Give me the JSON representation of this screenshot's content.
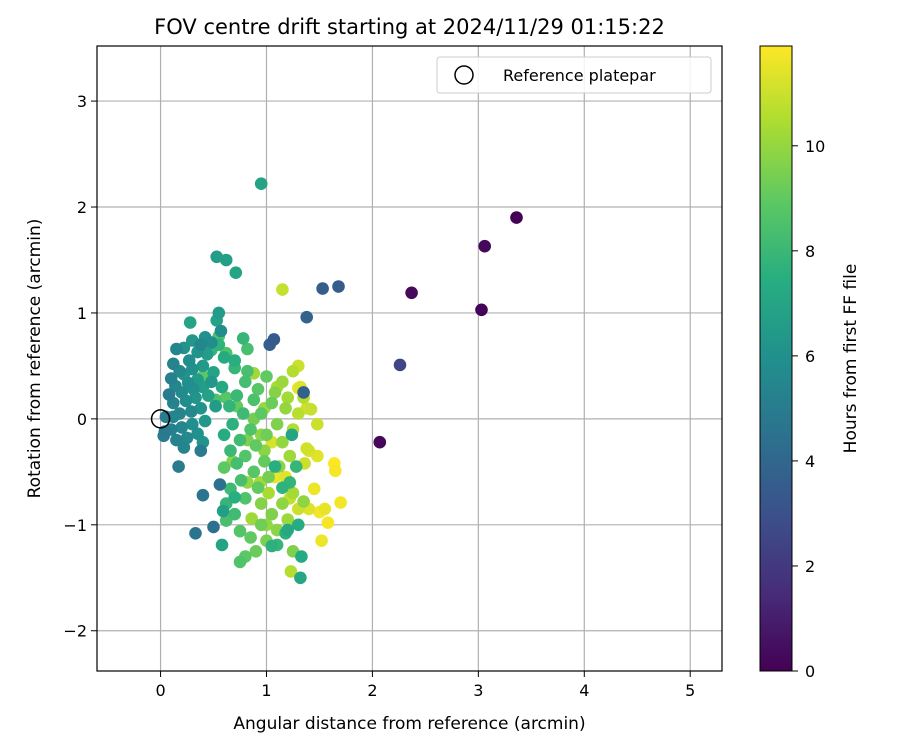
{
  "chart_data": {
    "type": "scatter",
    "title": "FOV centre drift starting at 2024/11/29 01:15:22",
    "xlabel": "Angular distance from reference (arcmin)",
    "ylabel": "Rotation from reference (arcmin)",
    "xlim": [
      -0.6,
      5.3
    ],
    "ylim": [
      -2.38,
      3.52
    ],
    "xticks": [
      0,
      1,
      2,
      3,
      4,
      5
    ],
    "yticks": [
      -2,
      -1,
      0,
      1,
      2,
      3
    ],
    "grid": true,
    "colormap": "viridis",
    "colorbar": {
      "label": "Hours from first FF file",
      "range": [
        0,
        11.9
      ],
      "ticks": [
        0,
        2,
        4,
        6,
        8,
        10
      ]
    },
    "legend": {
      "placement": "top-right",
      "entries": [
        {
          "label": "Reference platepar",
          "marker": "open-circle",
          "color": "#000000"
        }
      ]
    },
    "reference_point": {
      "x": 0,
      "y": 0
    },
    "series": [
      {
        "marker": "filled-circle",
        "points": [
          [
            3.36,
            1.9,
            0.0
          ],
          [
            3.06,
            1.63,
            0.2
          ],
          [
            2.37,
            1.19,
            0.3
          ],
          [
            3.03,
            1.03,
            0.1
          ],
          [
            2.07,
            -0.22,
            0.2
          ],
          [
            2.26,
            0.51,
            2.5
          ],
          [
            1.53,
            1.23,
            3.6
          ],
          [
            1.68,
            1.25,
            3.5
          ],
          [
            1.38,
            0.96,
            3.8
          ],
          [
            1.07,
            0.75,
            3.4
          ],
          [
            1.03,
            0.7,
            3.6
          ],
          [
            1.35,
            0.25,
            3.7
          ],
          [
            0.95,
            2.22,
            6.9
          ],
          [
            0.53,
            1.53,
            6.6
          ],
          [
            0.62,
            1.5,
            6.7
          ],
          [
            0.71,
            1.38,
            7.0
          ],
          [
            0.55,
            1.0,
            6.5
          ],
          [
            0.53,
            0.93,
            6.8
          ],
          [
            0.28,
            0.91,
            7.0
          ],
          [
            0.57,
            0.83,
            5.8
          ],
          [
            0.42,
            0.77,
            6.0
          ],
          [
            0.3,
            0.74,
            6.3
          ],
          [
            0.48,
            0.72,
            5.8
          ],
          [
            0.38,
            0.7,
            5.5
          ],
          [
            0.22,
            0.67,
            6.1
          ],
          [
            0.15,
            0.66,
            5.4
          ],
          [
            0.35,
            0.63,
            6.2
          ],
          [
            0.44,
            0.61,
            6.6
          ],
          [
            0.27,
            0.55,
            5.9
          ],
          [
            0.12,
            0.52,
            5.3
          ],
          [
            0.4,
            0.5,
            6.4
          ],
          [
            0.3,
            0.47,
            6.0
          ],
          [
            0.18,
            0.45,
            5.6
          ],
          [
            0.22,
            0.42,
            6.2
          ],
          [
            0.1,
            0.38,
            5.2
          ],
          [
            0.35,
            0.37,
            6.5
          ],
          [
            0.48,
            0.35,
            6.3
          ],
          [
            0.26,
            0.34,
            5.9
          ],
          [
            0.14,
            0.31,
            5.5
          ],
          [
            0.4,
            0.3,
            6.7
          ],
          [
            0.31,
            0.28,
            6.0
          ],
          [
            0.2,
            0.25,
            5.7
          ],
          [
            0.08,
            0.23,
            5.0
          ],
          [
            0.45,
            0.22,
            6.8
          ],
          [
            0.33,
            0.2,
            6.2
          ],
          [
            0.24,
            0.17,
            5.8
          ],
          [
            0.12,
            0.15,
            5.3
          ],
          [
            0.52,
            0.12,
            6.5
          ],
          [
            0.38,
            0.1,
            6.1
          ],
          [
            0.29,
            0.07,
            5.6
          ],
          [
            0.18,
            0.05,
            5.4
          ],
          [
            0.05,
            0.02,
            5.0
          ],
          [
            0.42,
            -0.02,
            6.3
          ],
          [
            0.3,
            -0.05,
            5.9
          ],
          [
            0.2,
            -0.08,
            5.5
          ],
          [
            0.1,
            -0.1,
            5.2
          ],
          [
            0.04,
            -0.12,
            4.9
          ],
          [
            0.35,
            -0.14,
            6.0
          ],
          [
            0.25,
            -0.18,
            5.6
          ],
          [
            0.15,
            -0.2,
            5.3
          ],
          [
            0.4,
            -0.22,
            6.2
          ],
          [
            0.22,
            -0.27,
            5.4
          ],
          [
            0.38,
            -0.3,
            5.0
          ],
          [
            0.17,
            -0.45,
            5.0
          ],
          [
            0.4,
            -0.72,
            4.6
          ],
          [
            0.33,
            -1.08,
            4.6
          ],
          [
            0.5,
            -1.02,
            4.4
          ],
          [
            0.56,
            -0.62,
            4.5
          ],
          [
            0.59,
            -0.87,
            6.7
          ],
          [
            0.58,
            -1.19,
            6.9
          ],
          [
            0.03,
            -0.16,
            5.0
          ],
          [
            0.12,
            0.02,
            5.5
          ],
          [
            0.5,
            0.44,
            6.9
          ],
          [
            0.6,
            0.58,
            7.3
          ],
          [
            0.7,
            0.55,
            7.5
          ],
          [
            0.58,
            0.3,
            7.2
          ],
          [
            0.65,
            0.12,
            7.8
          ],
          [
            0.72,
            0.22,
            8.0
          ],
          [
            0.8,
            0.35,
            8.3
          ],
          [
            0.88,
            0.18,
            8.5
          ],
          [
            0.78,
            0.05,
            8.1
          ],
          [
            0.68,
            -0.05,
            7.6
          ],
          [
            0.6,
            -0.15,
            7.4
          ],
          [
            0.75,
            -0.2,
            8.2
          ],
          [
            0.85,
            -0.1,
            8.6
          ],
          [
            0.95,
            0.05,
            8.9
          ],
          [
            1.05,
            0.15,
            9.2
          ],
          [
            0.92,
            0.28,
            8.8
          ],
          [
            1.0,
            0.4,
            9.0
          ],
          [
            0.82,
            0.45,
            8.4
          ],
          [
            0.7,
            0.48,
            7.9
          ],
          [
            0.55,
            0.7,
            7.7
          ],
          [
            0.78,
            0.76,
            7.9
          ],
          [
            0.82,
            0.66,
            8.4
          ],
          [
            0.62,
            0.62,
            8.6
          ],
          [
            0.66,
            -0.3,
            8.0
          ],
          [
            0.72,
            -0.42,
            8.3
          ],
          [
            0.8,
            -0.35,
            8.7
          ],
          [
            0.9,
            -0.25,
            9.0
          ],
          [
            1.0,
            -0.15,
            9.3
          ],
          [
            1.1,
            -0.05,
            9.6
          ],
          [
            1.18,
            0.1,
            10.0
          ],
          [
            1.08,
            0.25,
            9.7
          ],
          [
            0.98,
            -0.4,
            9.1
          ],
          [
            0.88,
            -0.5,
            8.8
          ],
          [
            0.76,
            -0.58,
            8.4
          ],
          [
            0.66,
            -0.66,
            8.1
          ],
          [
            0.62,
            -0.8,
            7.9
          ],
          [
            0.7,
            -0.9,
            8.2
          ],
          [
            0.8,
            -0.75,
            8.6
          ],
          [
            0.92,
            -0.65,
            9.0
          ],
          [
            1.02,
            -0.55,
            9.4
          ],
          [
            1.12,
            -0.45,
            9.8
          ],
          [
            1.22,
            -0.35,
            10.2
          ],
          [
            1.15,
            -0.22,
            10.0
          ],
          [
            1.25,
            -0.1,
            10.5
          ],
          [
            1.3,
            0.05,
            10.7
          ],
          [
            1.2,
            0.2,
            10.3
          ],
          [
            1.15,
            0.35,
            10.1
          ],
          [
            1.25,
            0.45,
            10.6
          ],
          [
            0.62,
            -0.96,
            8.4
          ],
          [
            0.75,
            -1.06,
            8.7
          ],
          [
            0.85,
            -1.12,
            9.0
          ],
          [
            0.95,
            -1.0,
            9.3
          ],
          [
            1.05,
            -0.9,
            9.6
          ],
          [
            1.15,
            -0.8,
            9.9
          ],
          [
            1.25,
            -0.7,
            10.3
          ],
          [
            1.2,
            -0.95,
            10.1
          ],
          [
            1.1,
            -1.05,
            9.8
          ],
          [
            1.0,
            -1.15,
            9.5
          ],
          [
            0.9,
            -1.25,
            9.2
          ],
          [
            0.8,
            -1.3,
            8.9
          ],
          [
            0.75,
            -1.35,
            8.6
          ],
          [
            1.05,
            -1.2,
            7.6
          ],
          [
            1.2,
            -1.05,
            7.2
          ],
          [
            1.25,
            -1.25,
            9.6
          ],
          [
            1.3,
            -1.0,
            7.4
          ],
          [
            1.35,
            -0.78,
            9.9
          ],
          [
            1.22,
            -0.6,
            7.8
          ],
          [
            1.28,
            -0.45,
            7.9
          ],
          [
            1.33,
            -1.3,
            7.3
          ],
          [
            1.32,
            -1.5,
            7.1
          ],
          [
            1.23,
            -1.44,
            10.6
          ],
          [
            1.24,
            -0.15,
            7.0
          ],
          [
            1.15,
            -0.65,
            7.7
          ],
          [
            1.08,
            -0.45,
            7.5
          ],
          [
            1.38,
            -0.28,
            11.1
          ],
          [
            1.48,
            -0.35,
            11.4
          ],
          [
            1.36,
            -0.42,
            11.0
          ],
          [
            1.45,
            -0.66,
            11.6
          ],
          [
            1.5,
            -0.88,
            11.7
          ],
          [
            1.55,
            -0.85,
            11.5
          ],
          [
            1.58,
            -0.98,
            11.8
          ],
          [
            1.52,
            -1.15,
            11.6
          ],
          [
            1.4,
            -0.3,
            11.2
          ],
          [
            1.3,
            0.5,
            11.0
          ],
          [
            1.32,
            0.3,
            11.3
          ],
          [
            1.38,
            0.1,
            11.1
          ],
          [
            1.42,
            0.09,
            10.9
          ],
          [
            1.48,
            -0.05,
            11.0
          ],
          [
            1.64,
            -0.42,
            11.9
          ],
          [
            1.65,
            -0.49,
            11.8
          ],
          [
            1.7,
            -0.79,
            11.7
          ],
          [
            1.15,
            1.22,
            10.9
          ],
          [
            1.3,
            0.29,
            11.5
          ],
          [
            1.05,
            -0.22,
            11.2
          ],
          [
            1.08,
            -0.55,
            11.6
          ],
          [
            1.18,
            -0.55,
            11.4
          ],
          [
            1.22,
            -0.75,
            10.8
          ],
          [
            1.3,
            -0.85,
            11.0
          ],
          [
            1.4,
            -0.85,
            11.3
          ],
          [
            1.35,
            0.2,
            10.6
          ],
          [
            0.95,
            -0.8,
            9.7
          ],
          [
            0.88,
            0.0,
            9.4
          ],
          [
            0.98,
            -0.3,
            9.8
          ],
          [
            1.02,
            -0.7,
            10.4
          ],
          [
            0.82,
            -0.2,
            9.6
          ],
          [
            0.72,
            0.12,
            9.1
          ],
          [
            0.62,
            0.2,
            8.8
          ],
          [
            0.52,
            0.18,
            8.5
          ],
          [
            0.48,
            0.65,
            7.9
          ],
          [
            0.55,
            0.78,
            8.6
          ],
          [
            0.4,
            0.4,
            8.9
          ],
          [
            0.82,
            -0.6,
            10.0
          ],
          [
            0.68,
            -0.4,
            9.8
          ],
          [
            0.6,
            -0.46,
            8.9
          ],
          [
            0.7,
            -0.74,
            7.5
          ],
          [
            0.86,
            -0.94,
            10.2
          ],
          [
            0.94,
            -0.6,
            10.3
          ],
          [
            1.0,
            -1.0,
            10.0
          ],
          [
            1.1,
            -1.19,
            7.9
          ],
          [
            1.18,
            -1.08,
            7.6
          ],
          [
            0.98,
            0.1,
            10.1
          ],
          [
            1.1,
            0.3,
            10.4
          ],
          [
            0.88,
            0.43,
            10.2
          ],
          [
            0.95,
            -0.15,
            9.9
          ]
        ]
      }
    ]
  }
}
